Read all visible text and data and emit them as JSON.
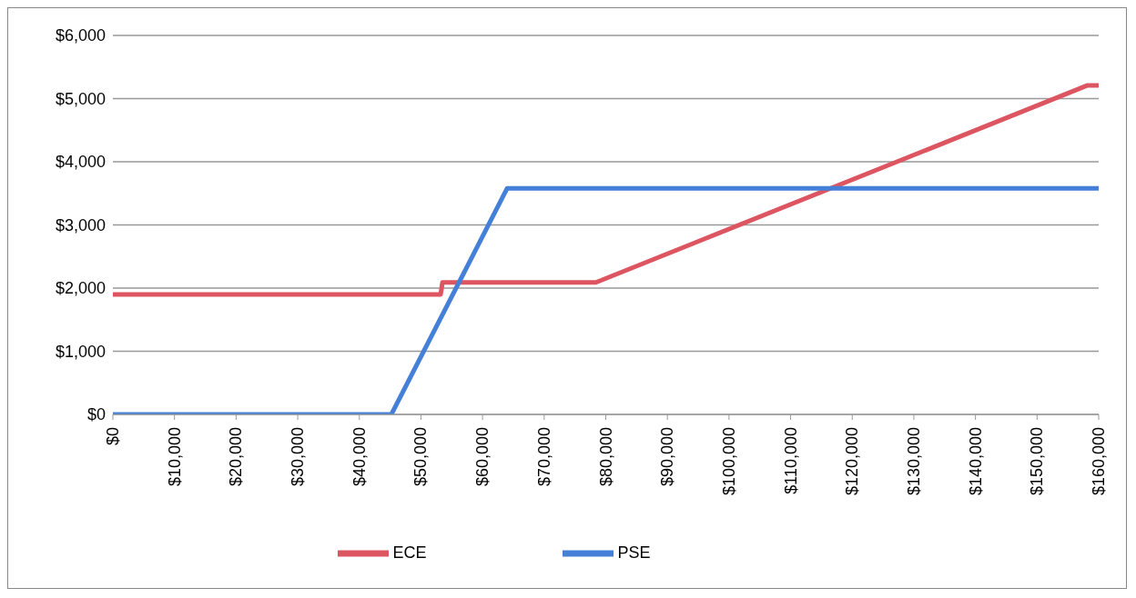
{
  "chart_data": {
    "type": "line",
    "xlim": [
      0,
      160000
    ],
    "xticks": [
      {
        "value": 0,
        "label": "$0"
      },
      {
        "value": 10000,
        "label": "$10,000"
      },
      {
        "value": 20000,
        "label": "$20,000"
      },
      {
        "value": 30000,
        "label": "$30,000"
      },
      {
        "value": 40000,
        "label": "$40,000"
      },
      {
        "value": 50000,
        "label": "$50,000"
      },
      {
        "value": 60000,
        "label": "$60,000"
      },
      {
        "value": 70000,
        "label": "$70,000"
      },
      {
        "value": 80000,
        "label": "$80,000"
      },
      {
        "value": 90000,
        "label": "$90,000"
      },
      {
        "value": 100000,
        "label": "$100,000"
      },
      {
        "value": 110000,
        "label": "$110,000"
      },
      {
        "value": 120000,
        "label": "$120,000"
      },
      {
        "value": 130000,
        "label": "$130,000"
      },
      {
        "value": 140000,
        "label": "$140,000"
      },
      {
        "value": 150000,
        "label": "$150,000"
      },
      {
        "value": 160000,
        "label": "$160,000"
      }
    ],
    "ylim": [
      0,
      6000
    ],
    "yticks": [
      {
        "value": 0,
        "label": "$0"
      },
      {
        "value": 1000,
        "label": "$1,000"
      },
      {
        "value": 2000,
        "label": "$2,000"
      },
      {
        "value": 3000,
        "label": "$3,000"
      },
      {
        "value": 4000,
        "label": "$4,000"
      },
      {
        "value": 5000,
        "label": "$5,000"
      },
      {
        "value": 6000,
        "label": "$6,000"
      }
    ],
    "grid": "y",
    "legend": "bottom",
    "marker": "none",
    "line_style": "solid",
    "series": [
      {
        "name": "ECE",
        "color": "#dc5561",
        "x": [
          0,
          53200,
          53500,
          78400,
          158200,
          160000
        ],
        "values": [
          1900,
          1900,
          2090,
          2090,
          5210,
          5210
        ]
      },
      {
        "name": "PSE",
        "color": "#4580d8",
        "x": [
          0,
          45200,
          64000,
          160000
        ],
        "values": [
          0,
          0,
          3580,
          3580
        ]
      }
    ]
  }
}
